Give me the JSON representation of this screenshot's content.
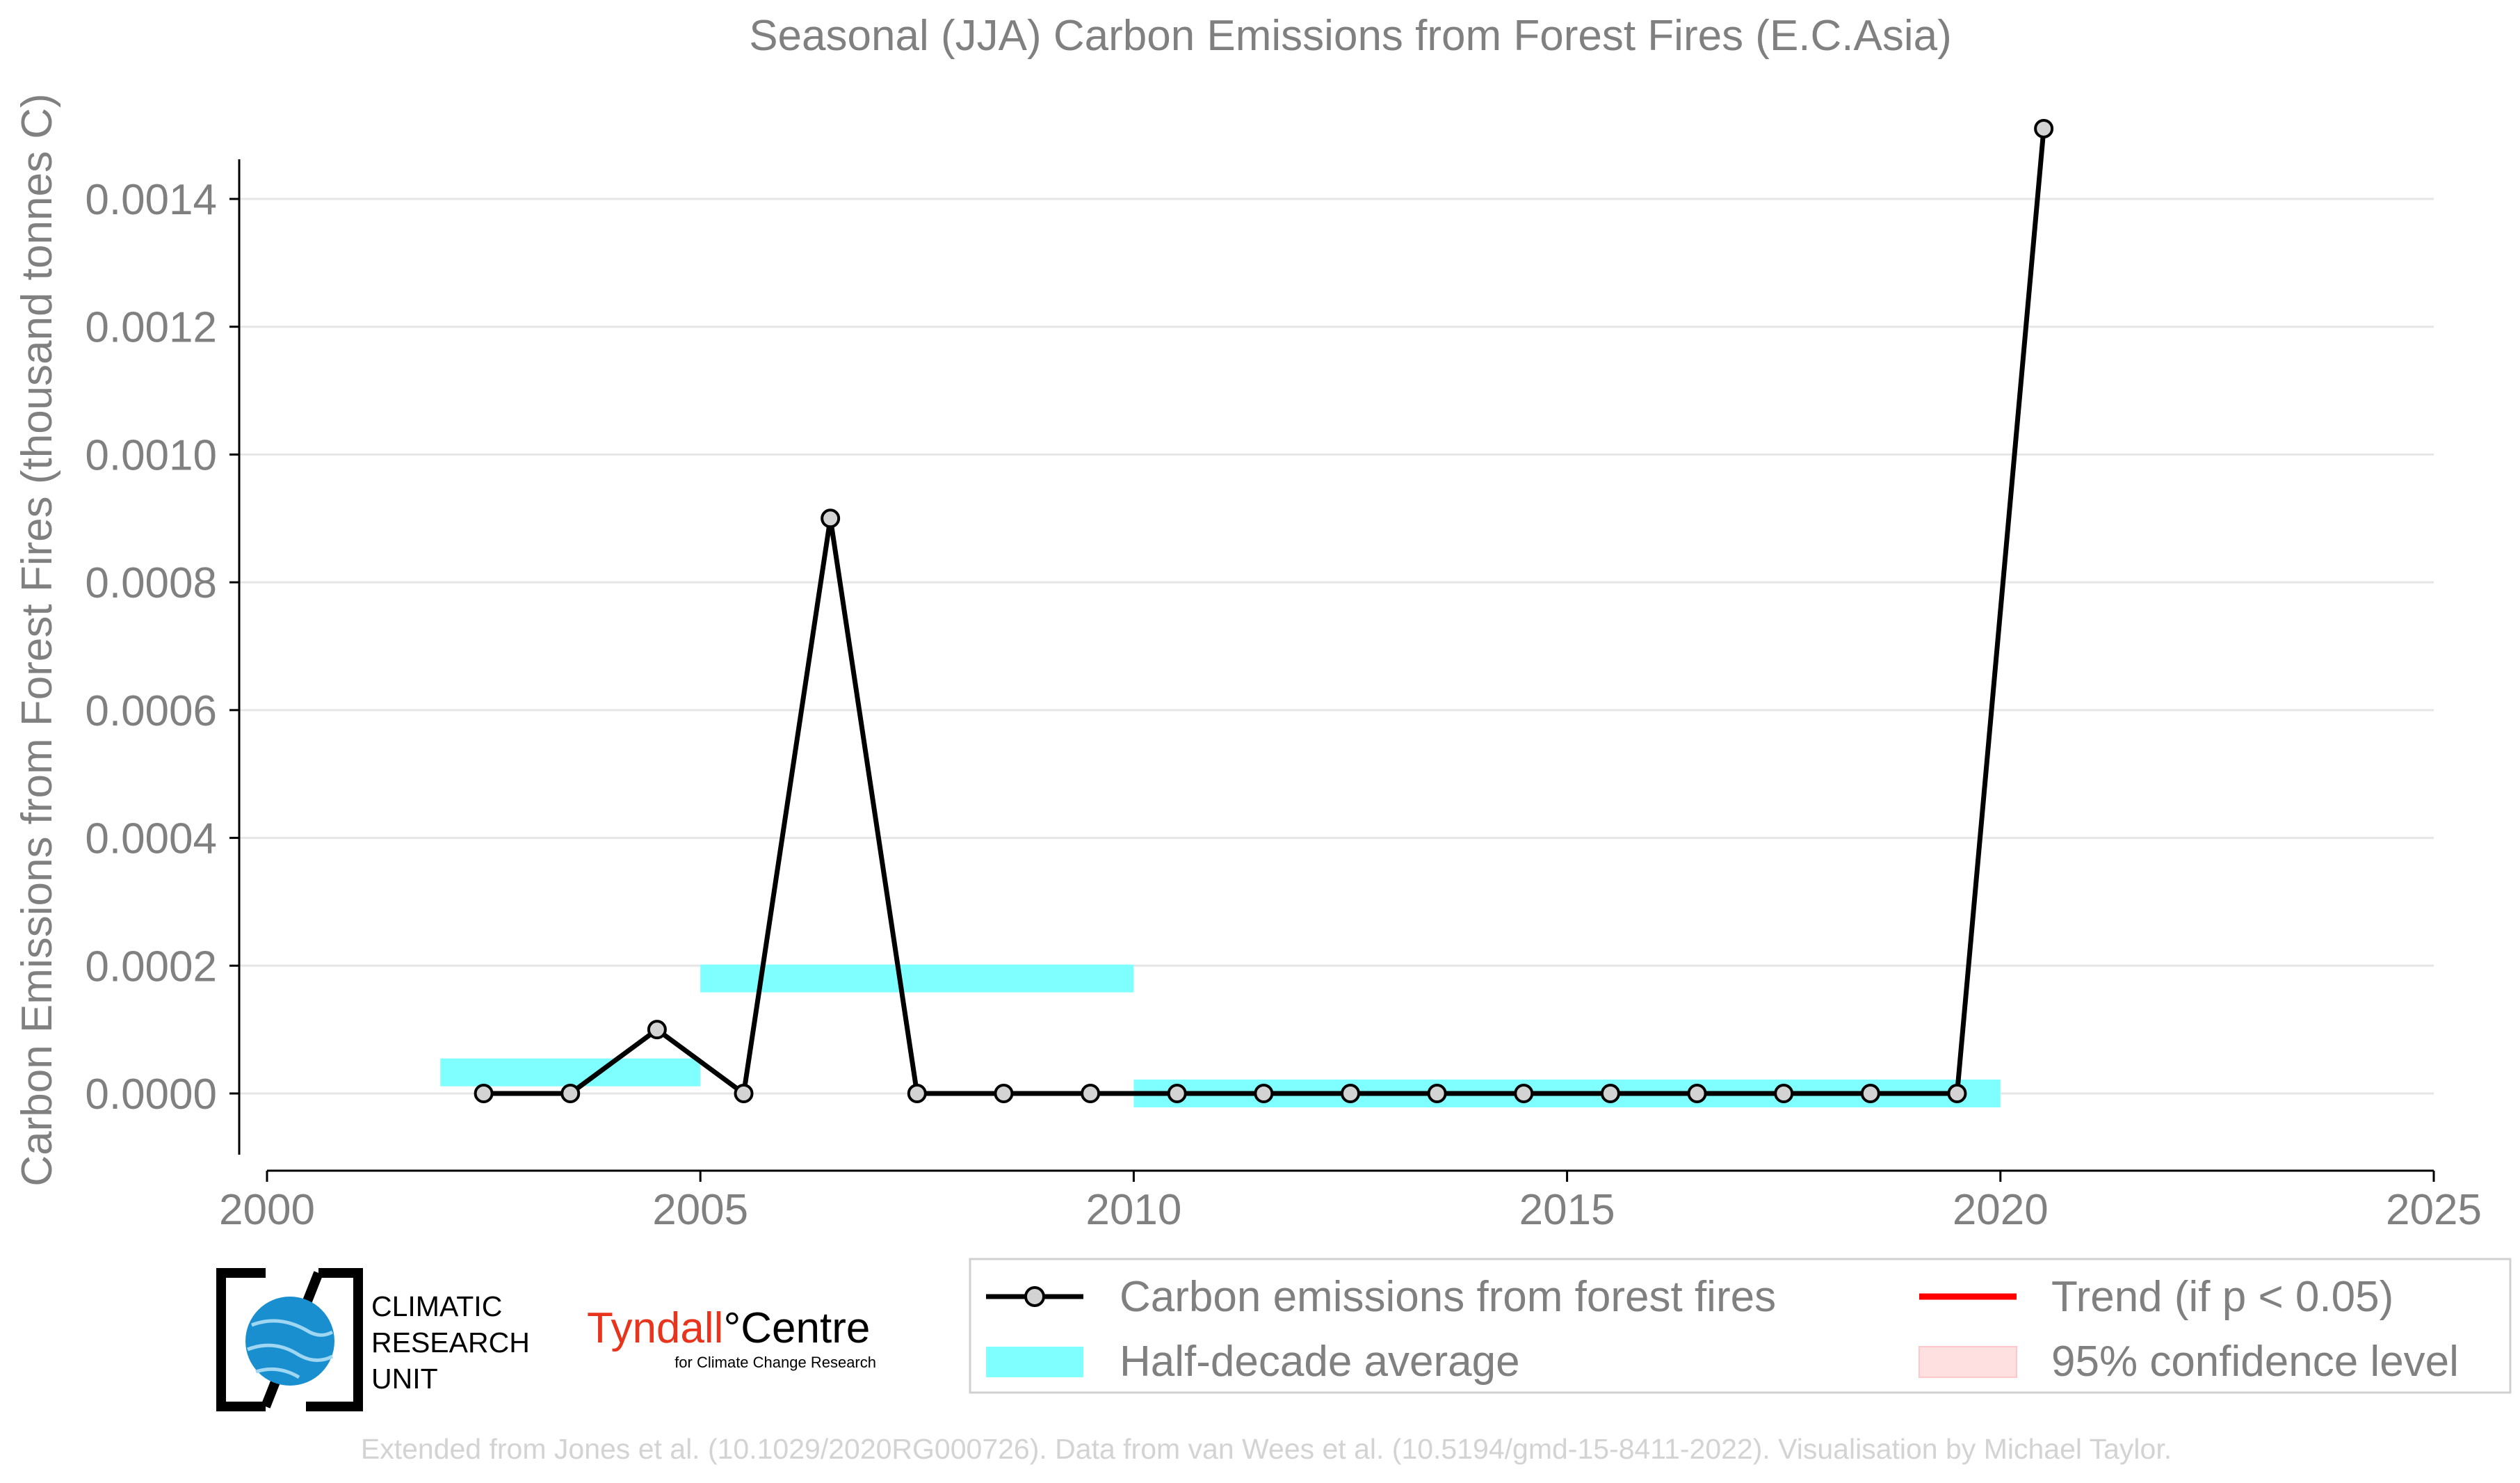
{
  "chart_data": {
    "type": "line",
    "title": "Seasonal (JJA) Carbon Emissions from Forest Fires (E.C.Asia)",
    "xlabel": "",
    "ylabel": "Carbon Emissions from Forest Fires (thousand tonnes C)",
    "xlim": [
      2000,
      2025
    ],
    "ylim": [
      -0.00011,
      0.00155
    ],
    "x_ticks": [
      2000,
      2005,
      2010,
      2015,
      2020,
      2025
    ],
    "y_ticks": [
      0.0,
      0.0002,
      0.0004,
      0.0006,
      0.0008,
      0.001,
      0.0012,
      0.0014
    ],
    "y_tick_labels": [
      "0.0000",
      "0.0002",
      "0.0004",
      "0.0006",
      "0.0008",
      "0.0010",
      "0.0012",
      "0.0014"
    ],
    "grid": "horizontal",
    "series": [
      {
        "name": "Carbon emissions from forest fires",
        "color": "#000000",
        "marker_fill": "#d3d3d3",
        "x": [
          2002.5,
          2003.5,
          2004.5,
          2005.5,
          2006.5,
          2007.5,
          2008.5,
          2009.5,
          2010.5,
          2011.5,
          2012.5,
          2013.5,
          2014.5,
          2015.5,
          2016.5,
          2017.5,
          2018.5,
          2019.5,
          2020.5
        ],
        "values": [
          0.0,
          0.0,
          0.0001,
          0.0,
          0.0009,
          0.0,
          0.0,
          0.0,
          0.0,
          0.0,
          0.0,
          0.0,
          0.0,
          0.0,
          0.0,
          0.0,
          0.0,
          0.0,
          0.00151
        ]
      }
    ],
    "half_decade_average": {
      "name": "Half-decade average",
      "color": "#7fffff",
      "segments": [
        {
          "x_start": 2002,
          "x_end": 2005,
          "value": 3.3e-05
        },
        {
          "x_start": 2005,
          "x_end": 2010,
          "value": 0.00018
        },
        {
          "x_start": 2010,
          "x_end": 2020,
          "value": 0.0
        }
      ]
    },
    "legend": {
      "placement": "bottom",
      "entries": [
        {
          "label": "Carbon emissions from forest fires",
          "color": "#000000",
          "kind": "line-marker"
        },
        {
          "label": "Trend (if p < 0.05)",
          "color": "#ff0000",
          "kind": "line"
        },
        {
          "label": "Half-decade average",
          "color": "#7fffff",
          "kind": "band"
        },
        {
          "label": "95% confidence level",
          "color": "#ffe0e0",
          "kind": "band"
        }
      ]
    }
  },
  "logos": {
    "crc_lines": [
      "CLIMATIC",
      "RESEARCH",
      "UNIT"
    ],
    "tyndall_name": "Tyndall",
    "tyndall_degree": "°",
    "tyndall_centre": "Centre",
    "tyndall_sub": "for Climate Change Research"
  },
  "footer": "Extended from Jones et al. (10.1029/2020RG000726). Data from van Wees et al. (10.5194/gmd-15-8411-2022). Visualisation by Michael Taylor.",
  "colors": {
    "grid": "#e6e6e6",
    "text": "#808080",
    "footer": "#d3d3d3",
    "tyndall_red": "#e8341c",
    "crc_blue": "#1a8fd0"
  }
}
